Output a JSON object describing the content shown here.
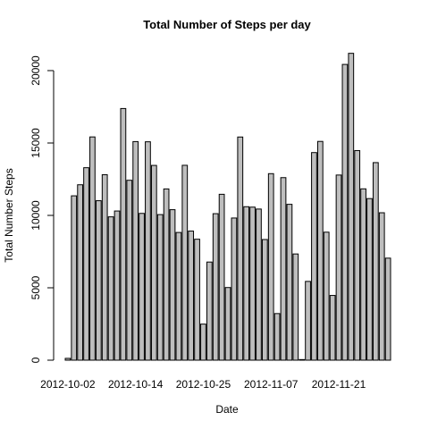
{
  "chart_data": {
    "type": "bar",
    "title": "Total Number of Steps per day",
    "xlabel": "Date",
    "ylabel": "Total Number Steps",
    "categories": [
      "2012-10-02",
      null,
      null,
      null,
      null,
      null,
      null,
      null,
      null,
      null,
      null,
      "2012-10-14",
      null,
      null,
      null,
      null,
      null,
      null,
      null,
      null,
      null,
      null,
      "2012-10-25",
      null,
      null,
      null,
      null,
      null,
      null,
      null,
      null,
      null,
      null,
      "2012-11-07",
      null,
      null,
      null,
      null,
      null,
      null,
      null,
      null,
      null,
      null,
      "2012-11-21",
      null,
      null,
      null,
      null,
      null,
      null,
      null,
      null
    ],
    "values": [
      126,
      11352,
      12116,
      13294,
      15420,
      11015,
      12811,
      9900,
      10304,
      17382,
      12426,
      15098,
      10139,
      15084,
      13452,
      10056,
      11829,
      10395,
      8821,
      13460,
      8918,
      8355,
      2492,
      6778,
      10119,
      11458,
      5018,
      9819,
      15414,
      10600,
      10571,
      10439,
      8334,
      12883,
      3219,
      12608,
      10765,
      7336,
      41,
      5441,
      14339,
      15110,
      8841,
      4472,
      12787,
      20427,
      21194,
      14478,
      11834,
      11162,
      13646,
      10183,
      7047
    ],
    "color": "#bebebe",
    "ylim": [
      0,
      22000
    ],
    "yticks": [
      0,
      5000,
      10000,
      15000,
      20000
    ]
  }
}
